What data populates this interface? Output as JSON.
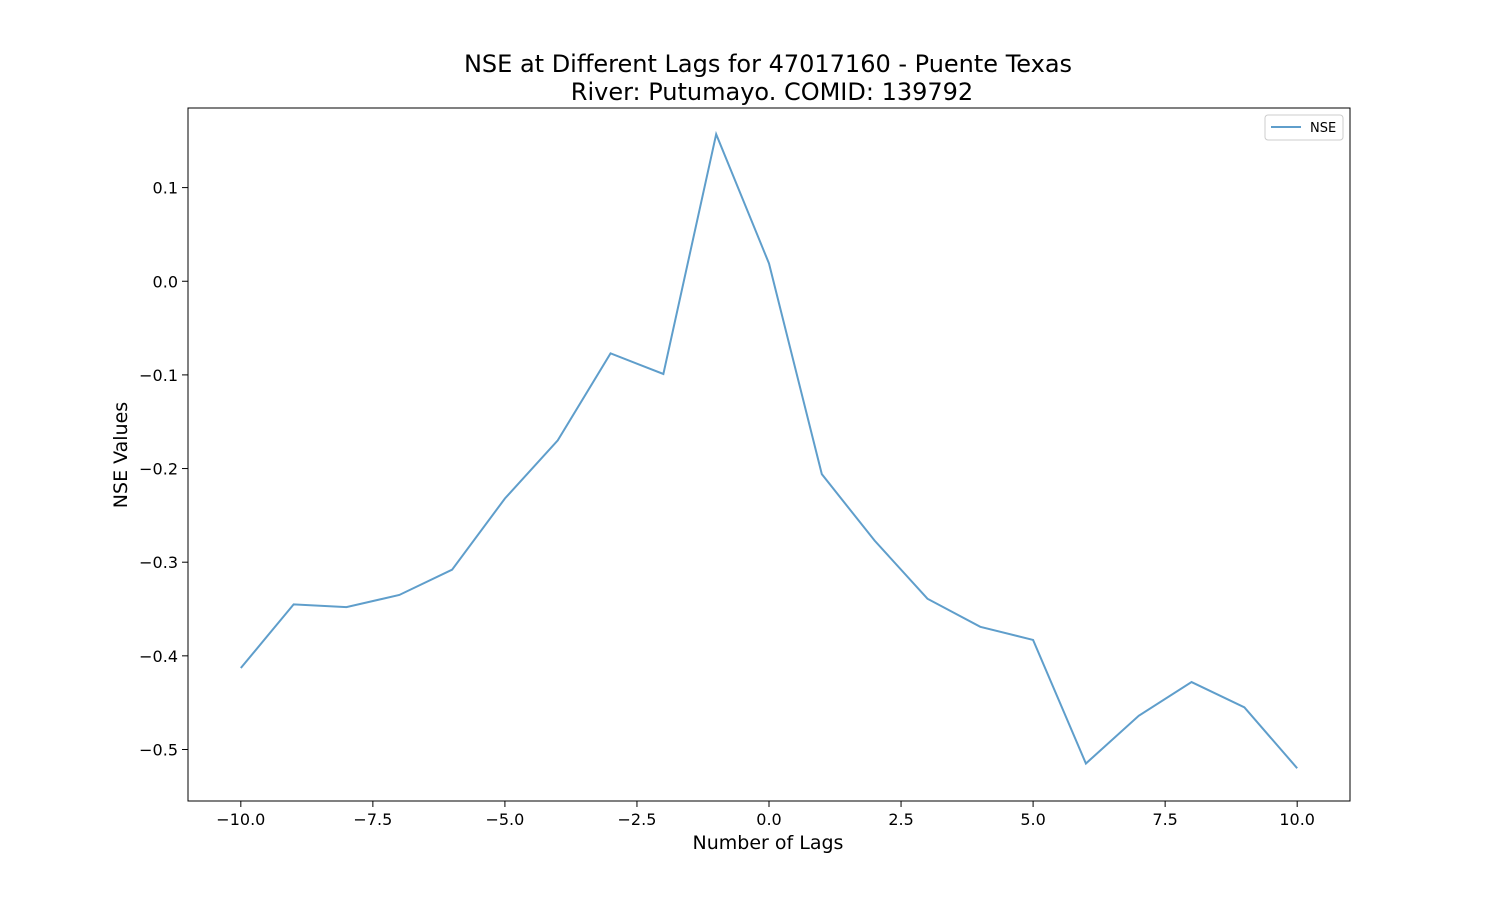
{
  "chart_data": {
    "type": "line",
    "title_line1": "NSE at Different Lags for 47017160 - Puente Texas",
    "title_line2": "River: Putumayo. COMID: 139792",
    "xlabel": "Number of Lags",
    "ylabel": "NSE Values",
    "xlim": [
      -11.0,
      11.0
    ],
    "ylim": [
      -0.555,
      0.185
    ],
    "x_ticks": [
      -10.0,
      -7.5,
      -5.0,
      -2.5,
      0.0,
      2.5,
      5.0,
      7.5,
      10.0
    ],
    "x_tick_labels": [
      "−10.0",
      "−7.5",
      "−5.0",
      "−2.5",
      "0.0",
      "2.5",
      "5.0",
      "7.5",
      "10.0"
    ],
    "y_ticks": [
      0.1,
      0.0,
      -0.1,
      -0.2,
      -0.3,
      -0.4,
      -0.5
    ],
    "y_tick_labels": [
      "0.1",
      "0.0",
      "−0.1",
      "−0.2",
      "−0.3",
      "−0.4",
      "−0.5"
    ],
    "grid": false,
    "legend_position": "top-right",
    "series": [
      {
        "name": "NSE",
        "color": "#5f9ecb",
        "x": [
          -10,
          -9,
          -8,
          -7,
          -6,
          -5,
          -4,
          -3,
          -2,
          -1,
          0,
          1,
          2,
          3,
          4,
          5,
          6,
          7,
          8,
          9,
          10
        ],
        "values": [
          -0.413,
          -0.345,
          -0.348,
          -0.335,
          -0.308,
          -0.232,
          -0.17,
          -0.077,
          -0.099,
          0.157,
          0.019,
          -0.206,
          -0.277,
          -0.339,
          -0.369,
          -0.383,
          -0.515,
          -0.464,
          -0.428,
          -0.455,
          -0.52
        ]
      }
    ]
  }
}
